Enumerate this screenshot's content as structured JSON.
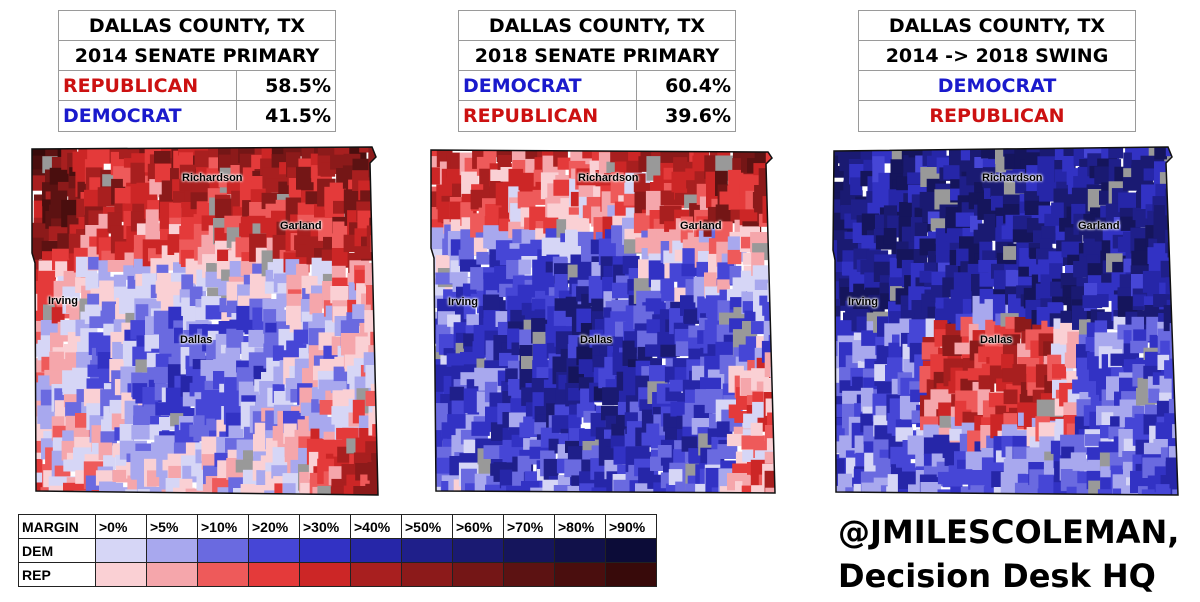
{
  "colors": {
    "dem": "#1a1acc",
    "rep": "#cc1111",
    "dem_scale": [
      "#d6d6f6",
      "#a8a8ee",
      "#6a6ae0",
      "#4646d6",
      "#3232c4",
      "#2626a8",
      "#1f1f8a",
      "#1a1a72",
      "#15155c",
      "#11114a",
      "#0c0c38"
    ],
    "rep_scale": [
      "#fad0d4",
      "#f5a6ab",
      "#ee5a5a",
      "#e43a3a",
      "#cc2626",
      "#a81f1f",
      "#8c1a1a",
      "#741616",
      "#5c1212",
      "#4a0e0e",
      "#380a0a"
    ]
  },
  "panels": [
    {
      "title": "DALLAS COUNTY, TX",
      "subtitle": "2014 SENATE PRIMARY",
      "rows": [
        {
          "party": "REPUBLICAN",
          "color": "rep",
          "pct": "58.5%"
        },
        {
          "party": "DEMOCRAT",
          "color": "dem",
          "pct": "41.5%"
        }
      ],
      "mix": "2014"
    },
    {
      "title": "DALLAS COUNTY, TX",
      "subtitle": "2018 SENATE PRIMARY",
      "rows": [
        {
          "party": "DEMOCRAT",
          "color": "dem",
          "pct": "60.4%"
        },
        {
          "party": "REPUBLICAN",
          "color": "rep",
          "pct": "39.6%"
        }
      ],
      "mix": "2018"
    },
    {
      "title": "DALLAS COUNTY, TX",
      "subtitle": "2014 -> 2018 SWING",
      "rows": [
        {
          "party": "DEMOCRAT",
          "color": "dem",
          "pct": ""
        },
        {
          "party": "REPUBLICAN",
          "color": "rep",
          "pct": ""
        }
      ],
      "mix": "swing"
    }
  ],
  "cities": {
    "richardson": "Richardson",
    "garland": "Garland",
    "irving": "Irving",
    "dallas": "Dallas"
  },
  "legend": {
    "margin_label": "MARGIN",
    "dem_label": "DEM",
    "rep_label": "REP",
    "bins": [
      ">0%",
      ">5%",
      ">10%",
      ">20%",
      ">30%",
      ">40%",
      ">50%",
      ">60%",
      ">70%",
      ">80%",
      ">90%"
    ]
  },
  "credit": {
    "line1": "@JMILESCOLEMAN,",
    "line2": "Decision Desk HQ"
  }
}
